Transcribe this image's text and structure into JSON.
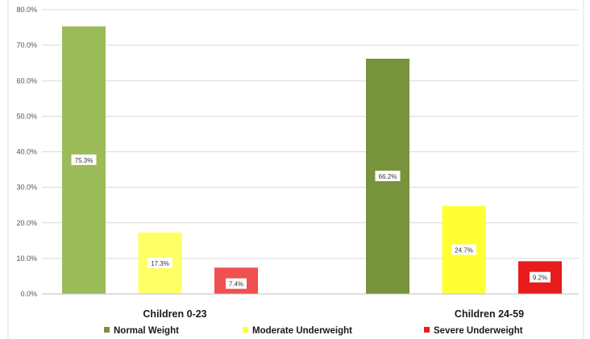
{
  "chart_data": {
    "type": "bar",
    "categories": [
      "Children 0-23",
      "Children 24-59"
    ],
    "series": [
      {
        "name": "Normal Weight",
        "values": [
          75.3,
          66.2
        ],
        "colors": [
          "#9bbb59",
          "#77933c"
        ]
      },
      {
        "name": "Moderate Underweight",
        "values": [
          17.3,
          24.7
        ],
        "colors": [
          "#ffff66",
          "#ffff33"
        ]
      },
      {
        "name": "Severe Underweight",
        "values": [
          7.4,
          9.2
        ],
        "colors": [
          "#f05050",
          "#e81c1c"
        ]
      }
    ],
    "data_labels": [
      [
        "75.3%",
        "66.2%"
      ],
      [
        "17.3%",
        "24.7%"
      ],
      [
        "7.4%",
        "9.2%"
      ]
    ],
    "yticks": [
      "0.0%",
      "10.0%",
      "20.0%",
      "30.0%",
      "40.0%",
      "50.0%",
      "60.0%",
      "70.0%",
      "80.0%"
    ],
    "ylim": [
      0,
      80
    ],
    "grid": true,
    "legend_position": "bottom",
    "legend_colors": [
      "#77933c",
      "#ffff33",
      "#e81c1c"
    ]
  }
}
